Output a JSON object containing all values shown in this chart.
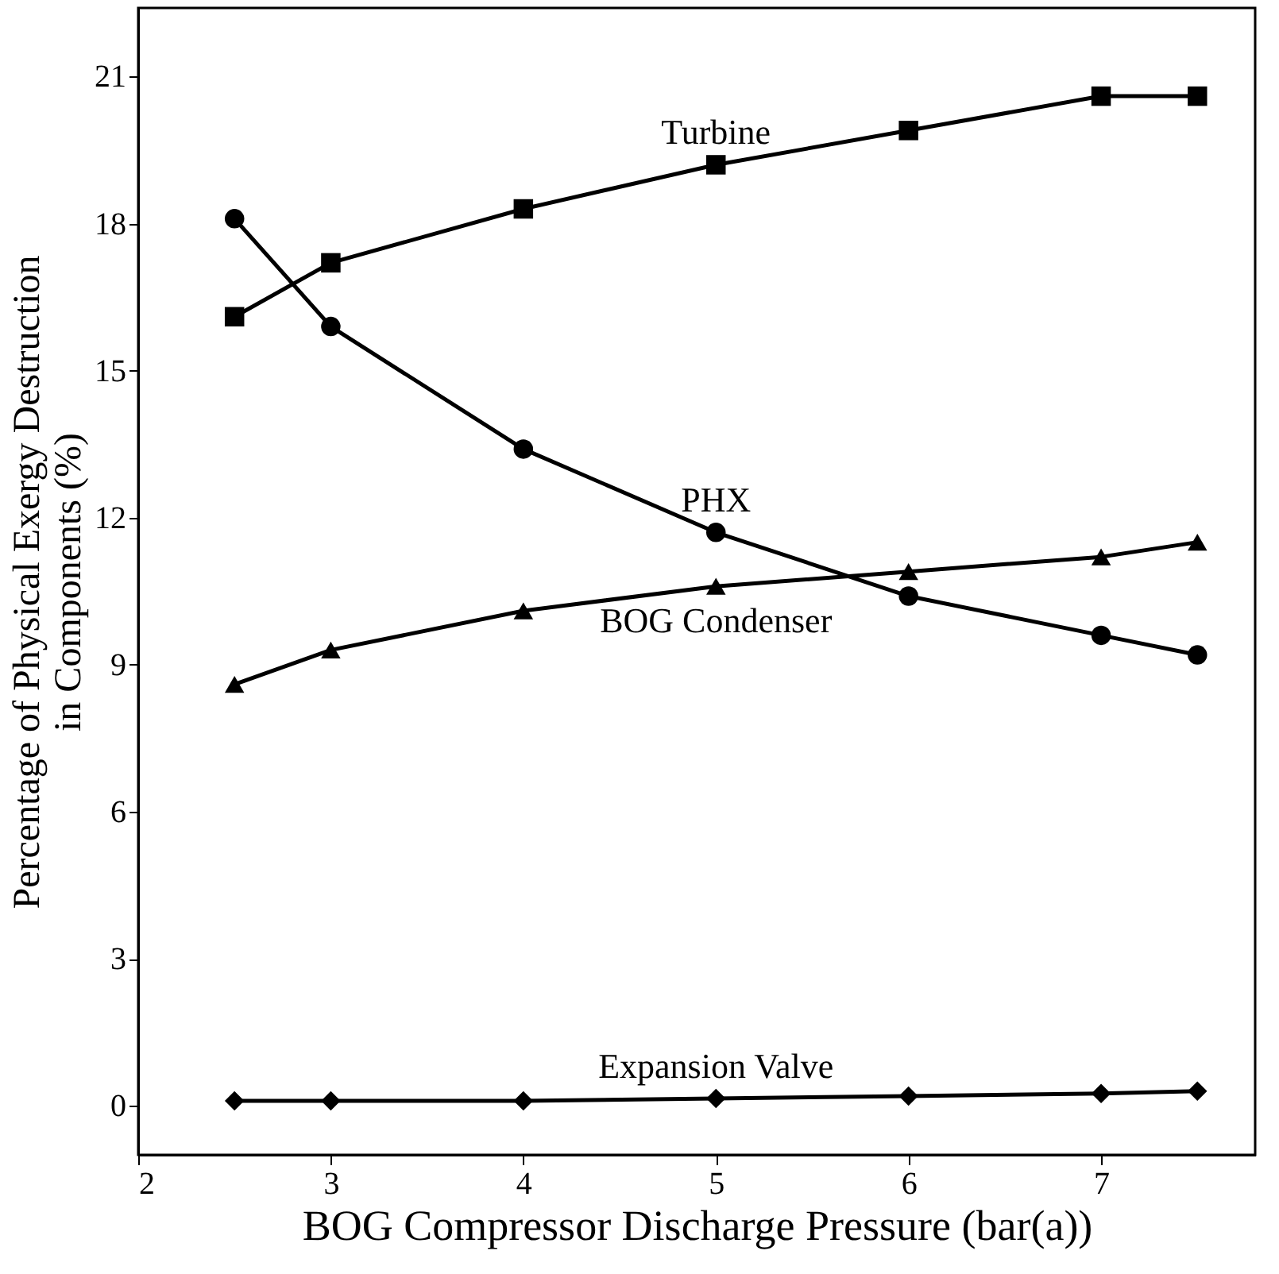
{
  "chart_data": {
    "type": "line",
    "xlabel": "BOG Compressor Discharge Pressure (bar(a))",
    "ylabel": "Percentage of Physical Exergy Destruction\nin Components (%)",
    "x": [
      2.5,
      3,
      4,
      5,
      6,
      7,
      7.5
    ],
    "series": [
      {
        "name": "Turbine",
        "color": "#000000",
        "marker": "square",
        "values": [
          16.1,
          17.2,
          18.3,
          19.2,
          19.9,
          20.6,
          20.6
        ]
      },
      {
        "name": "PHX",
        "color": "#000000",
        "marker": "circle",
        "values": [
          18.1,
          15.9,
          13.4,
          11.7,
          10.4,
          9.6,
          9.2
        ]
      },
      {
        "name": "BOG Condenser",
        "color": "#000000",
        "marker": "triangle",
        "values": [
          8.6,
          9.3,
          10.1,
          10.6,
          10.9,
          11.2,
          11.5
        ]
      },
      {
        "name": "Expansion Valve",
        "color": "#000000",
        "marker": "diamond",
        "values": [
          0.1,
          0.1,
          0.1,
          0.15,
          0.2,
          0.25,
          0.3
        ]
      }
    ],
    "xlim": [
      2,
      7.8
    ],
    "xticks": [
      2,
      3,
      4,
      5,
      6,
      7
    ],
    "ylim": [
      -1,
      22.4
    ],
    "yticks": [
      0,
      3,
      6,
      9,
      12,
      15,
      18,
      21
    ],
    "grid": false,
    "line_style": "solid"
  }
}
